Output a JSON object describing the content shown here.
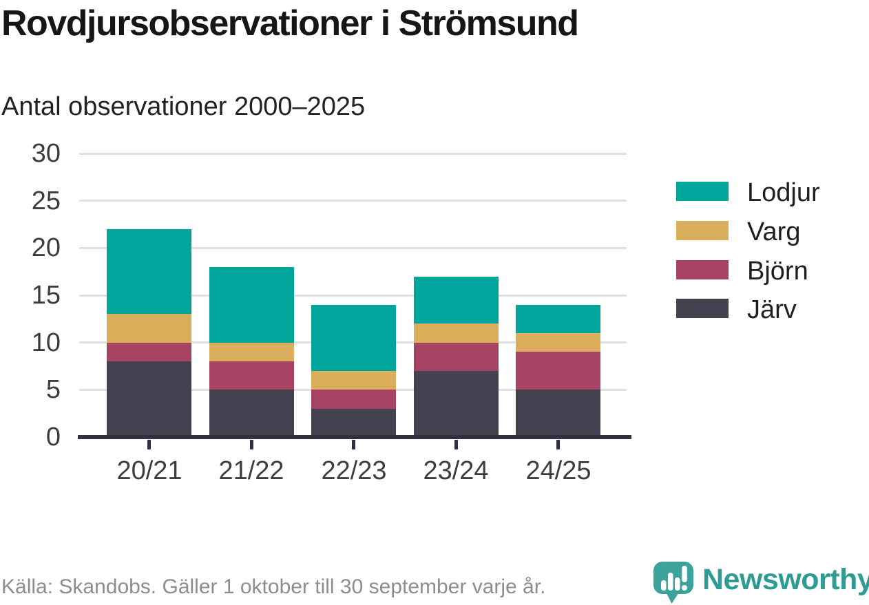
{
  "header": {
    "title": "Rovdjursobservationer i Strömsund",
    "subtitle": "Antal observationer 2000–2025"
  },
  "chart_data": {
    "type": "bar",
    "stacked": true,
    "title": "Rovdjursobservationer i Strömsund",
    "subtitle": "Antal observationer 2000–2025",
    "categories": [
      "20/21",
      "21/22",
      "22/23",
      "23/24",
      "24/25"
    ],
    "series": [
      {
        "name": "Järv",
        "color": "#434050",
        "values": [
          8,
          5,
          3,
          7,
          5
        ]
      },
      {
        "name": "Björn",
        "color": "#a64262",
        "values": [
          2,
          3,
          2,
          3,
          4
        ]
      },
      {
        "name": "Varg",
        "color": "#dbae5b",
        "values": [
          3,
          2,
          2,
          2,
          2
        ]
      },
      {
        "name": "Lodjur",
        "color": "#00a59b",
        "values": [
          9,
          8,
          7,
          5,
          3
        ]
      }
    ],
    "stack_order": "bottom-to-top",
    "legend": [
      "Lodjur",
      "Varg",
      "Björn",
      "Järv"
    ],
    "legend_position": "right",
    "ylim": [
      0,
      30
    ],
    "ytick_step": 5,
    "yticks": [
      0,
      5,
      10,
      15,
      20,
      25,
      30
    ],
    "grid": "horizontal",
    "xlabel": "",
    "ylabel": ""
  },
  "footer": {
    "source": "Källa: Skandobs. Gäller 1 oktober till 30 september varje år.",
    "brand": "Newsworthy"
  },
  "colors": {
    "background": "#ffffff",
    "title_text": "#161616",
    "subtitle_text": "#222222",
    "axis_text": "#3d3d3d",
    "legend_text": "#1f1f1f",
    "grid": "#e0e0e0",
    "axis": "#323040",
    "source_text": "#8d8d8d",
    "brand": "#2d9c94",
    "logo_bubble": "#3ba39b",
    "logo_marks": "#ffffff"
  }
}
